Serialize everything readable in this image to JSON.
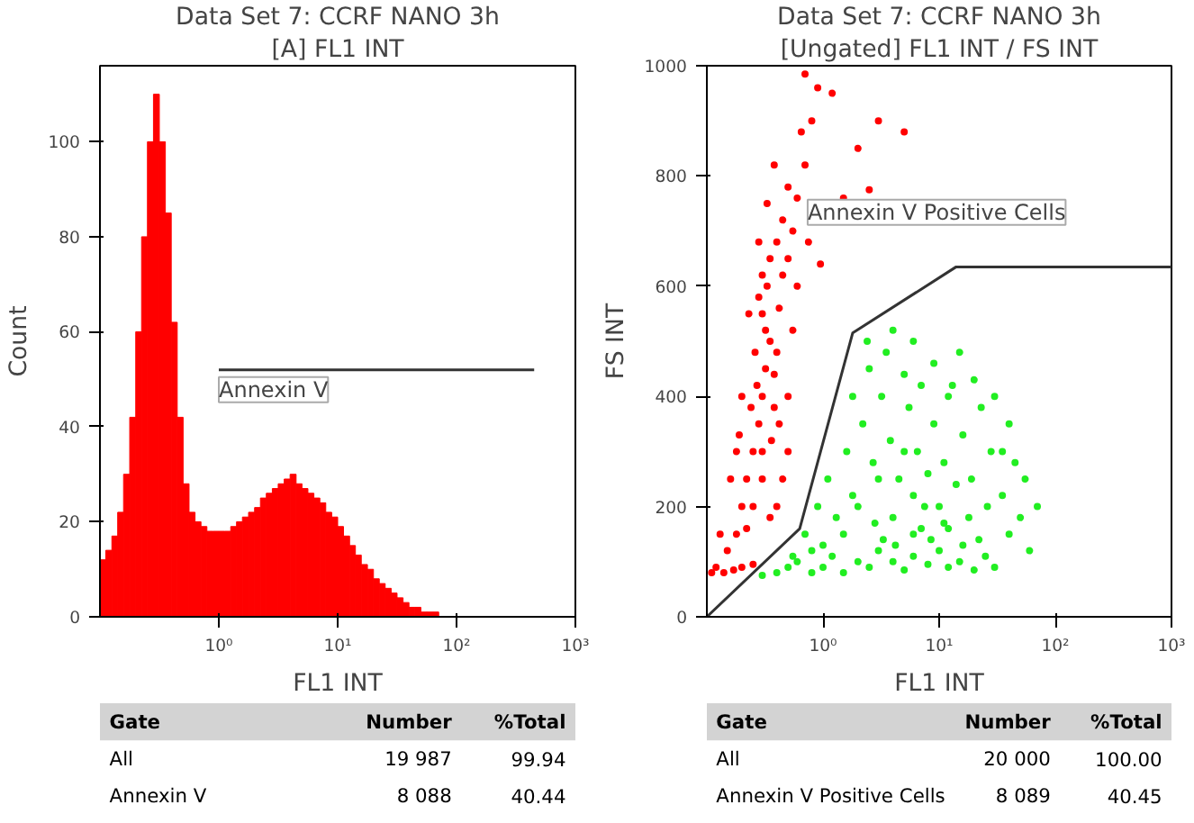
{
  "chart_data": [
    {
      "type": "histogram",
      "title": "Data Set 7: CCRF NANO 3h",
      "subtitle": "[A] FL1 INT",
      "xlabel": "FL1 INT",
      "ylabel": "Count",
      "color": "#ff0000",
      "log": "x",
      "grid": false,
      "bins": [
        0.1,
        0.112,
        0.126,
        0.141,
        0.158,
        0.178,
        0.2,
        0.224,
        0.251,
        0.282,
        0.316,
        0.355,
        0.398,
        0.447,
        0.501,
        0.562,
        0.631,
        0.708,
        0.794,
        0.891,
        1,
        1.12,
        1.26,
        1.41,
        1.58,
        1.78,
        2,
        2.24,
        2.51,
        2.82,
        3.16,
        3.55,
        3.98,
        4.47,
        5.01,
        5.62,
        6.31,
        7.08,
        7.94,
        8.91,
        10,
        11.2,
        12.6,
        14.1,
        15.8,
        17.8,
        20,
        22.4,
        25.1,
        28.2,
        31.6,
        35.5,
        39.8,
        44.7,
        50.1,
        56.2,
        63.1,
        70.8,
        79.4,
        89.1,
        100
      ],
      "values": [
        12,
        14,
        17,
        22,
        30,
        42,
        60,
        80,
        100,
        110,
        100,
        85,
        62,
        42,
        28,
        22,
        20,
        19,
        18,
        18,
        18,
        18,
        19,
        20,
        21,
        22,
        23,
        25,
        26,
        27,
        28,
        29,
        30,
        28,
        27,
        26,
        25,
        24,
        22,
        21,
        19,
        17,
        15,
        13,
        11,
        10,
        8,
        7,
        6,
        5,
        4,
        3,
        2,
        2,
        1,
        1,
        1,
        0,
        0,
        0
      ],
      "xlim": [
        0.1,
        1000
      ],
      "ylim": [
        0,
        116
      ],
      "xticks": [
        {
          "value": 1,
          "label": "10⁰"
        },
        {
          "value": 10,
          "label": "10¹"
        },
        {
          "value": 100,
          "label": "10²"
        },
        {
          "value": 1000,
          "label": "10³"
        }
      ],
      "yticks": [
        0,
        20,
        40,
        60,
        80,
        100
      ],
      "series": [
        {
          "type": "line",
          "color": "#333333",
          "marker": "none",
          "x": [
            1,
            450
          ],
          "values": [
            52,
            52
          ]
        }
      ],
      "annotations": [
        {
          "text": "Annexin V",
          "x": 1,
          "y": 52
        },
        "Gate",
        "Number",
        "%Total",
        "All",
        "19 987",
        "99.94",
        "Annexin V",
        "8 088",
        "40.44"
      ]
    },
    {
      "type": "scatter",
      "title": "Data Set 7: CCRF NANO 3h",
      "subtitle": "[Ungated] FL1 INT / FS INT",
      "xlabel": "FL1 INT",
      "ylabel": "FS INT",
      "log": "x",
      "grid": false,
      "marker": "circle",
      "xlim": [
        0.1,
        1000
      ],
      "ylim": [
        0,
        1000
      ],
      "xticks": [
        {
          "value": 1,
          "label": "10⁰"
        },
        {
          "value": 10,
          "label": "10¹"
        },
        {
          "value": 100,
          "label": "10²"
        },
        {
          "value": 1000,
          "label": "10³"
        }
      ],
      "yticks": [
        0,
        200,
        400,
        600,
        800,
        1000
      ],
      "series": [
        {
          "color": "#ff0000",
          "x": [
            0.3,
            0.32,
            0.28,
            0.35,
            0.3,
            0.33,
            0.25,
            0.27,
            0.38,
            0.4,
            0.22,
            0.3,
            0.36,
            0.42,
            0.45,
            0.5,
            0.55,
            0.6,
            0.7,
            0.8,
            0.9,
            0.65,
            0.5,
            0.45,
            0.4,
            0.35,
            0.3,
            0.26,
            0.24,
            0.2,
            0.18,
            0.15,
            0.12,
            0.11,
            0.14,
            0.17,
            0.2,
            0.25,
            0.13,
            0.16,
            0.19,
            0.23,
            0.28,
            0.33,
            0.38,
            0.95,
            1.5,
            2.0,
            3.0,
            1.2,
            0.7,
            2.5,
            5,
            0.45,
            0.5,
            0.55,
            0.4,
            0.35,
            0.6,
            0.75,
            0.3,
            0.25,
            0.22,
            0.5,
            0.42,
            0.38,
            0.32,
            0.28,
            0.2,
            0.18
          ],
          "values": [
            400,
            450,
            350,
            500,
            550,
            600,
            300,
            420,
            380,
            480,
            250,
            300,
            320,
            560,
            620,
            650,
            700,
            760,
            820,
            900,
            960,
            880,
            780,
            720,
            680,
            650,
            620,
            480,
            380,
            200,
            150,
            120,
            90,
            80,
            80,
            85,
            90,
            95,
            150,
            250,
            330,
            550,
            680,
            750,
            820,
            640,
            760,
            850,
            900,
            950,
            985,
            775,
            880,
            250,
            400,
            520,
            200,
            180,
            600,
            680,
            250,
            200,
            160,
            300,
            350,
            440,
            520,
            580,
            400,
            300
          ]
        },
        {
          "color": "#22ee22",
          "x": [
            0.3,
            0.4,
            0.5,
            0.6,
            0.8,
            1,
            1.2,
            1.5,
            2,
            2.5,
            3,
            4,
            5,
            6,
            8,
            10,
            12,
            15,
            20,
            25,
            30,
            0.7,
            0.9,
            1.1,
            1.3,
            1.6,
            1.8,
            2.2,
            2.7,
            3.2,
            3.8,
            4.5,
            5.5,
            6.5,
            7.5,
            9,
            11,
            13,
            16,
            19,
            23,
            28,
            35,
            40,
            50,
            60,
            1.5,
            2,
            3,
            4,
            5,
            6,
            7,
            8,
            10,
            12,
            14,
            18,
            22,
            26,
            2.5,
            3.5,
            5,
            7,
            9,
            12,
            15,
            20,
            30,
            40,
            1,
            0.8,
            0.55,
            2.8,
            3.3,
            4.2,
            6,
            8.5,
            11,
            16,
            1.8,
            2.4,
            4,
            6,
            45,
            55,
            35,
            70
          ],
          "values": [
            75,
            80,
            90,
            100,
            80,
            90,
            110,
            80,
            100,
            90,
            120,
            100,
            85,
            110,
            95,
            120,
            90,
            100,
            85,
            110,
            90,
            150,
            200,
            250,
            180,
            300,
            220,
            350,
            280,
            400,
            320,
            250,
            380,
            300,
            200,
            350,
            280,
            420,
            330,
            250,
            380,
            300,
            220,
            150,
            180,
            120,
            150,
            200,
            250,
            180,
            300,
            220,
            160,
            260,
            200,
            160,
            240,
            180,
            140,
            200,
            450,
            480,
            440,
            420,
            460,
            400,
            480,
            430,
            400,
            350,
            130,
            120,
            110,
            170,
            140,
            130,
            150,
            140,
            170,
            130,
            400,
            500,
            520,
            500,
            280,
            250,
            300,
            200
          ]
        },
        {
          "type": "line",
          "name": "Annexin V Positive Cells",
          "color": "#333333",
          "marker": "none",
          "x": [
            0.1,
            0.63,
            1.8,
            14,
            1000
          ],
          "values": [
            0,
            160,
            515,
            635,
            635
          ]
        }
      ],
      "annotations": [
        "Gate",
        "Number",
        "%Total",
        "All",
        "20 000",
        "100.00",
        "Annexin V Positive Cells",
        "8 089",
        "40.45"
      ]
    }
  ]
}
